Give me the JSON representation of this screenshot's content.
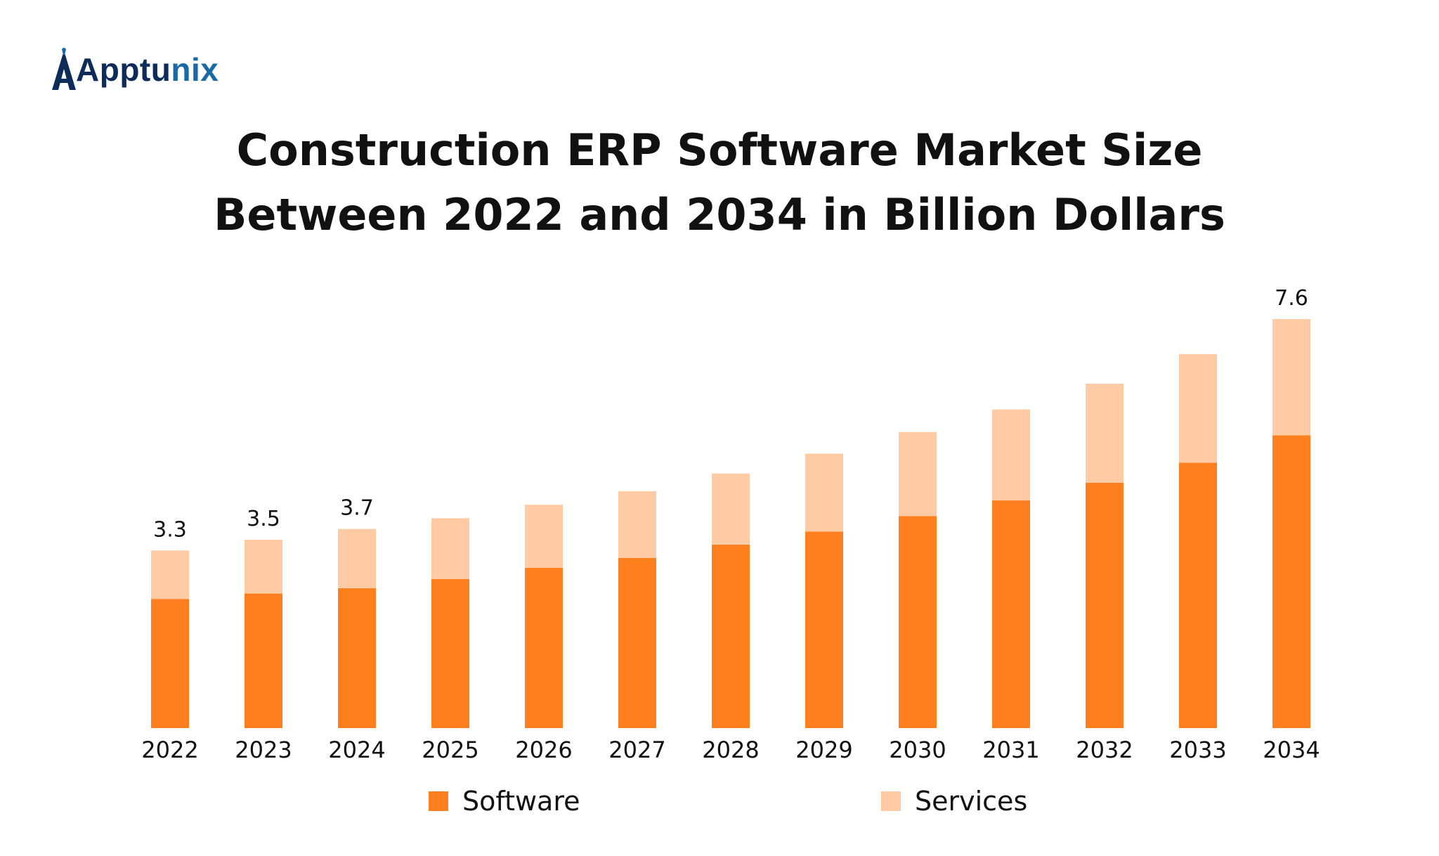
{
  "brand": {
    "name_part1": "Apptu",
    "name_part2": "nix"
  },
  "colors": {
    "software": "#ff7f1f",
    "services": "#ffcba4",
    "text": "#111111"
  },
  "legend": {
    "software_label": "Software",
    "services_label": "Services"
  },
  "chart_data": {
    "type": "bar",
    "stacked": true,
    "title": "Construction ERP Software Market Size Between 2022 and 2034 in Billion Dollars",
    "title_lines": [
      "Construction ERP Software Market Size",
      "Between 2022 and 2034 in Billion Dollars"
    ],
    "categories": [
      "2022",
      "2023",
      "2024",
      "2025",
      "2026",
      "2027",
      "2028",
      "2029",
      "2030",
      "2031",
      "2032",
      "2033",
      "2034"
    ],
    "series": [
      {
        "name": "Software",
        "values": [
          2.4,
          2.5,
          2.6,
          2.77,
          2.98,
          3.16,
          3.41,
          3.65,
          3.94,
          4.23,
          4.56,
          4.93,
          5.44
        ]
      },
      {
        "name": "Services",
        "values": [
          0.9,
          1.0,
          1.1,
          1.13,
          1.17,
          1.24,
          1.32,
          1.45,
          1.56,
          1.69,
          1.84,
          2.02,
          2.16
        ]
      }
    ],
    "totals": [
      3.3,
      3.5,
      3.7,
      3.9,
      4.15,
      4.4,
      4.73,
      5.1,
      5.5,
      5.92,
      6.4,
      6.95,
      7.6
    ],
    "total_labels": [
      {
        "category": "2022",
        "text": "3.3"
      },
      {
        "category": "2023",
        "text": "3.5"
      },
      {
        "category": "2024",
        "text": "3.7"
      },
      {
        "category": "2034",
        "text": "7.6"
      }
    ],
    "ylim": [
      0,
      7.6
    ],
    "grid": false,
    "legend_position": "bottom",
    "xlabel": "",
    "ylabel": ""
  }
}
